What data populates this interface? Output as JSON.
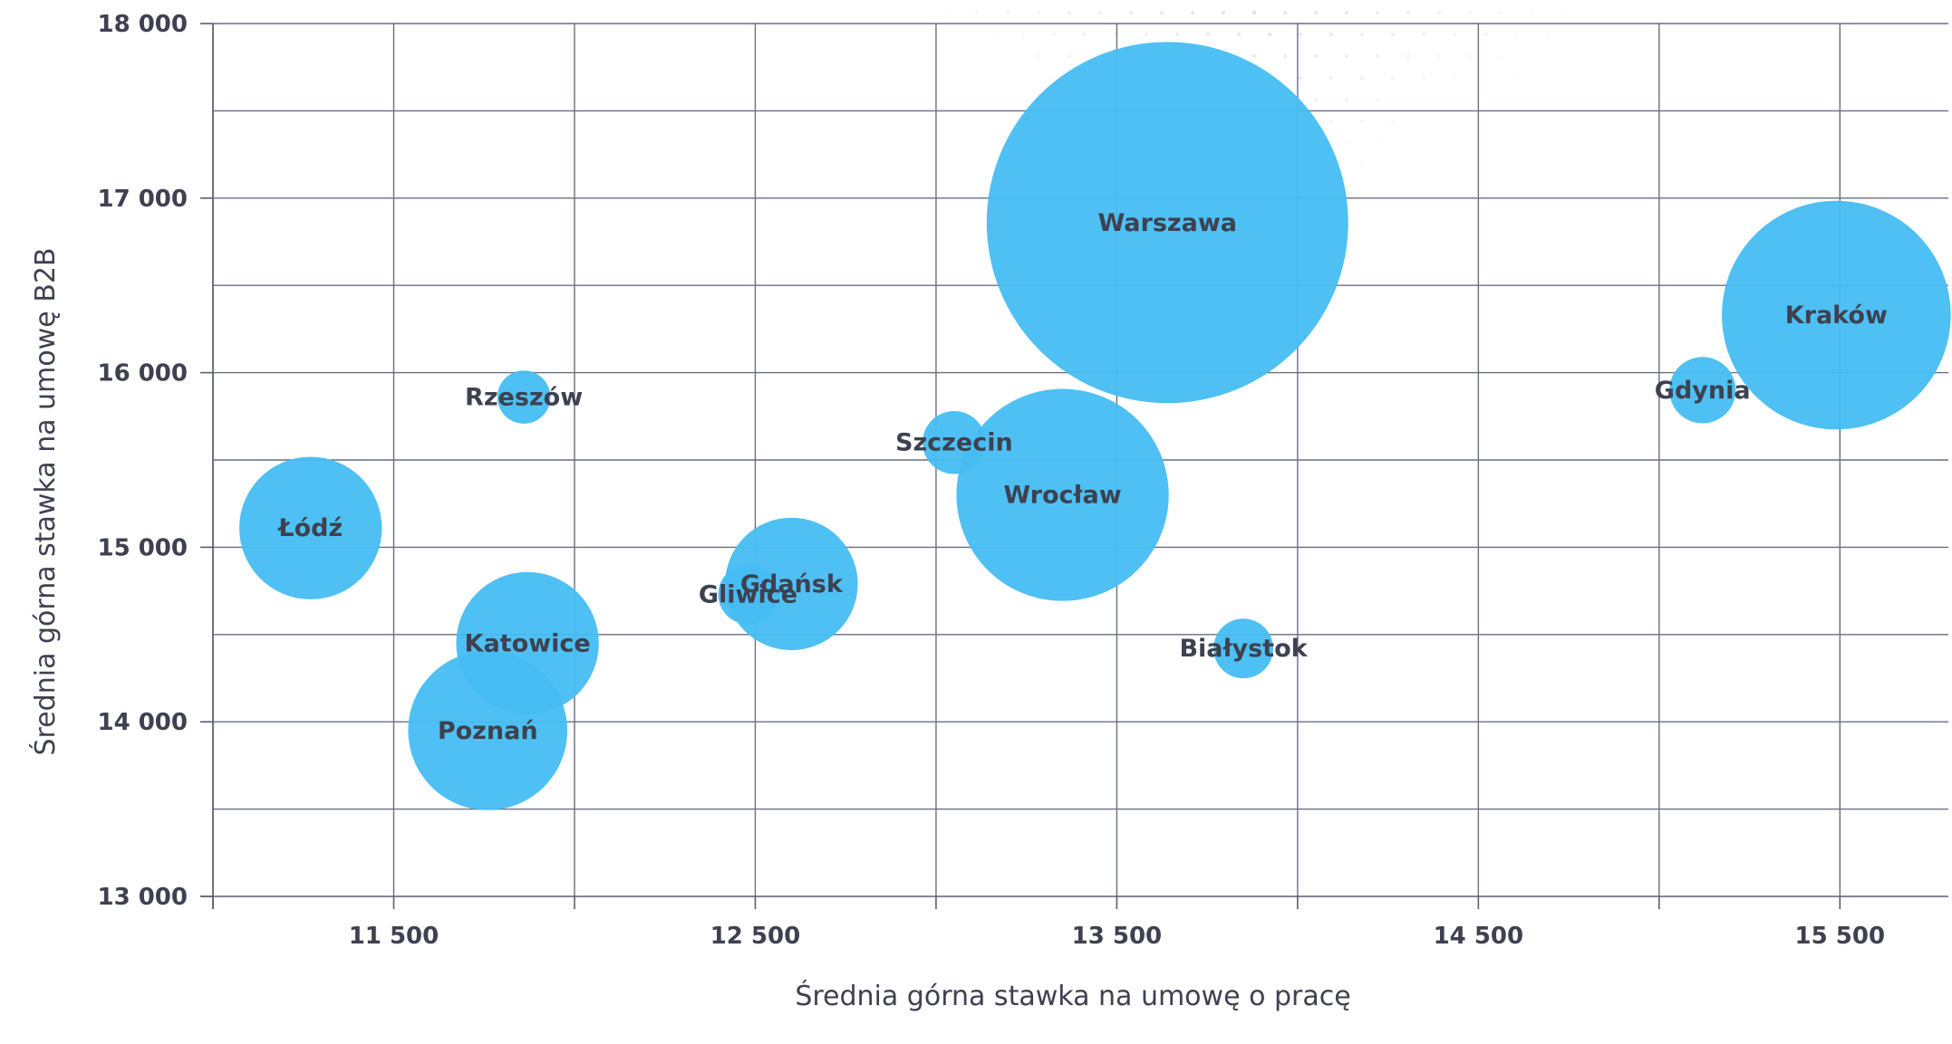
{
  "chart_data": {
    "type": "scatter",
    "xlabel": "Średnia górna stawka na umowę o pracę",
    "ylabel": "Średnia górna stawka na umowę B2B",
    "xlim": [
      11000,
      15800
    ],
    "ylim": [
      13000,
      18000
    ],
    "x_tick_labels": [
      {
        "value": 11500,
        "label": "11 500"
      },
      {
        "value": 12500,
        "label": "12 500"
      },
      {
        "value": 13500,
        "label": "13 500"
      },
      {
        "value": 14500,
        "label": "14 500"
      },
      {
        "value": 15500,
        "label": "15 500"
      }
    ],
    "x_gridlines": [
      11000,
      11500,
      12000,
      12500,
      13000,
      13500,
      14000,
      14500,
      15000,
      15500
    ],
    "y_tick_labels": [
      {
        "value": 13000,
        "label": "13 000"
      },
      {
        "value": 14000,
        "label": "14 000"
      },
      {
        "value": 15000,
        "label": "15 000"
      },
      {
        "value": 16000,
        "label": "16 000"
      },
      {
        "value": 17000,
        "label": "17 000"
      },
      {
        "value": 18000,
        "label": "18 000"
      }
    ],
    "y_gridlines": [
      13500,
      14000,
      14500,
      15000,
      15500,
      16000,
      16500,
      17000,
      17500,
      18000
    ],
    "grid": true,
    "bubble_color": "#45bdf2",
    "bubble_opacity": 0.95,
    "points": [
      {
        "name": "Łódź",
        "x": 11270,
        "y": 15110,
        "size": 43
      },
      {
        "name": "Rzeszów",
        "x": 11860,
        "y": 15860,
        "size": 16
      },
      {
        "name": "Katowice",
        "x": 11870,
        "y": 14450,
        "size": 43
      },
      {
        "name": "Poznań",
        "x": 11760,
        "y": 13950,
        "size": 48
      },
      {
        "name": "Gliwice",
        "x": 12480,
        "y": 14730,
        "size": 18
      },
      {
        "name": "Gdańsk",
        "x": 12600,
        "y": 14790,
        "size": 40
      },
      {
        "name": "Szczecin",
        "x": 13050,
        "y": 15600,
        "size": 19
      },
      {
        "name": "Wrocław",
        "x": 13350,
        "y": 15300,
        "size": 64
      },
      {
        "name": "Warszawa",
        "x": 13640,
        "y": 16860,
        "size": 109
      },
      {
        "name": "Białystok",
        "x": 13850,
        "y": 14420,
        "size": 18
      },
      {
        "name": "Gdynia",
        "x": 15120,
        "y": 15900,
        "size": 20
      },
      {
        "name": "Kraków",
        "x": 15490,
        "y": 16330,
        "size": 69
      }
    ]
  }
}
